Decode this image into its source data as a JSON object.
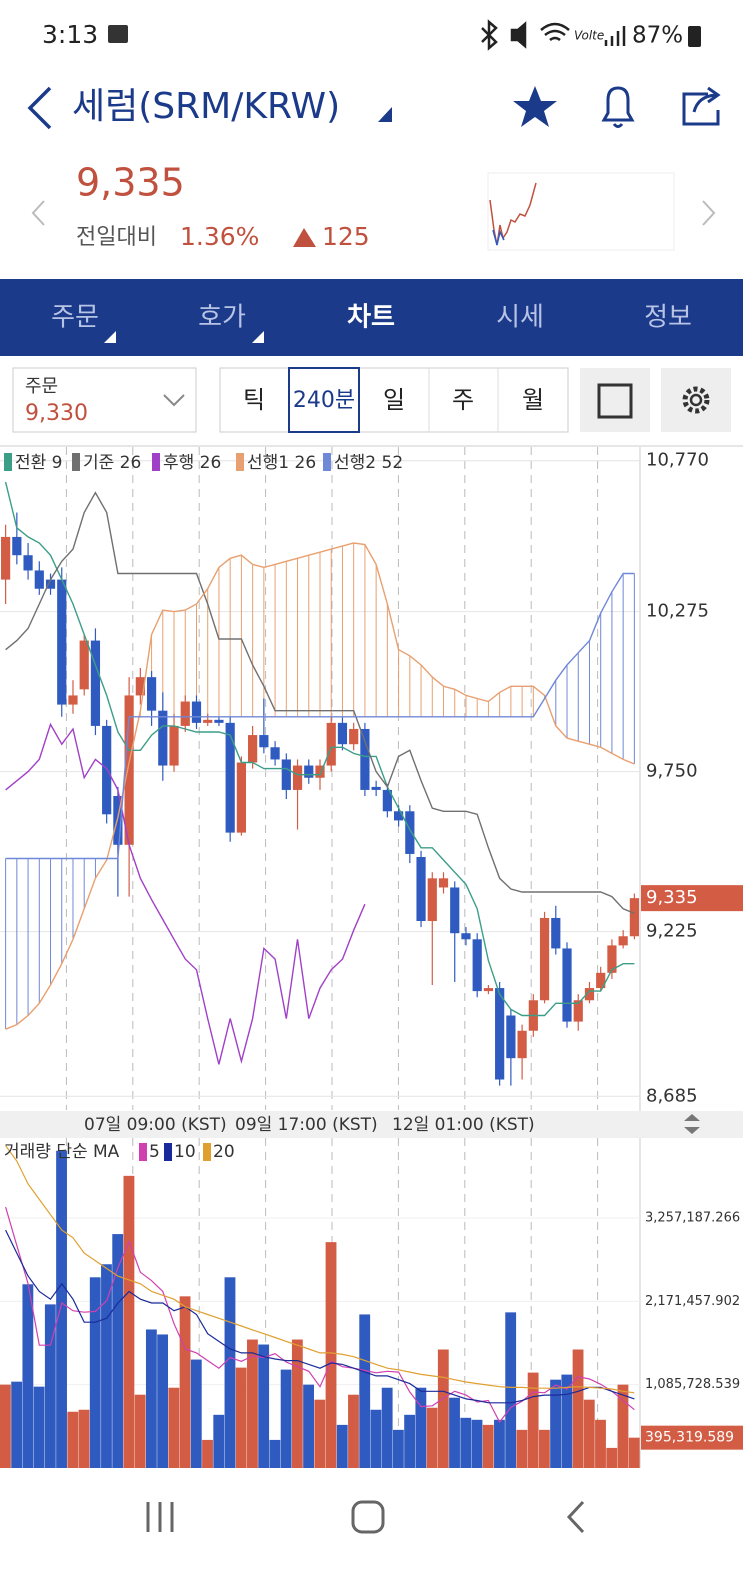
{
  "status_bar": {
    "time": "3:13",
    "battery": "87%"
  },
  "header": {
    "title": "세럼(SRM/KRW)"
  },
  "price_panel": {
    "price": "9,335",
    "change_label": "전일대비",
    "change_rate": "1.36%",
    "change_amount": "125"
  },
  "tabs": [
    "주문",
    "호가",
    "차트",
    "시세",
    "정보"
  ],
  "toolbar": {
    "order_label": "주문",
    "order_price": "9,330",
    "intervals": [
      "틱",
      "240분",
      "일",
      "주",
      "월"
    ]
  },
  "chart_data": [
    {
      "type": "candlestick",
      "up_color": "#d35c45",
      "down_color": "#2f5bc0",
      "grid": true,
      "ylim": [
        8640,
        10815
      ],
      "yticks": [
        {
          "value": 10770,
          "label": "10,770"
        },
        {
          "value": 10275,
          "label": "10,275"
        },
        {
          "value": 9750,
          "label": "9,750"
        },
        {
          "value": 9225,
          "label": "9,225"
        },
        {
          "value": 8685,
          "label": "8,685"
        }
      ],
      "last_price": {
        "value": 9335,
        "label": "9,335"
      },
      "x_labels": [
        "07일 09:00 (KST)",
        "09일 17:00 (KST)",
        "12일 01:00 (KST)"
      ],
      "open": [
        10380,
        10520,
        10460,
        10410,
        10380,
        10380,
        9970,
        10020,
        10180,
        9900,
        9670,
        9510,
        10000,
        10060,
        9950,
        9770,
        9900,
        9980,
        9910,
        9920,
        9910,
        9550,
        9780,
        9870,
        9830,
        9790,
        9690,
        9770,
        9730,
        9770,
        9910,
        9840,
        9890,
        9700,
        9690,
        9620,
        9620,
        9470,
        9260,
        9370,
        9370,
        9220,
        9200,
        9030,
        9040,
        8950,
        8810,
        8900,
        9000,
        9270,
        9170,
        8930,
        9000,
        9040,
        9090,
        9180,
        9210
      ],
      "high": [
        10560,
        10600,
        10500,
        10440,
        10400,
        10420,
        10050,
        10200,
        10220,
        9920,
        9700,
        10060,
        10090,
        10080,
        10010,
        9940,
        10000,
        10000,
        9940,
        9930,
        9930,
        9800,
        9900,
        9990,
        9850,
        9810,
        9790,
        9790,
        9790,
        9930,
        9930,
        9910,
        9910,
        9720,
        9710,
        9640,
        9640,
        9490,
        9420,
        9420,
        9390,
        9240,
        9220,
        9050,
        9060,
        8970,
        8920,
        9020,
        9290,
        9310,
        9190,
        9020,
        9060,
        9110,
        9200,
        9230,
        9350
      ],
      "low": [
        10300,
        10430,
        10380,
        10330,
        10330,
        9930,
        9940,
        10000,
        9870,
        9580,
        9340,
        9340,
        9970,
        9900,
        9720,
        9750,
        9880,
        9890,
        9900,
        9900,
        9520,
        9540,
        9760,
        9810,
        9770,
        9660,
        9560,
        9710,
        9690,
        9750,
        9820,
        9820,
        9670,
        9670,
        9600,
        9570,
        9450,
        9240,
        9050,
        9350,
        9060,
        9180,
        9010,
        9020,
        8720,
        8720,
        8740,
        8880,
        8990,
        9150,
        8910,
        8900,
        8990,
        9030,
        9070,
        9170,
        9200
      ],
      "close": [
        10520,
        10460,
        10410,
        10350,
        10350,
        9970,
        10000,
        10180,
        9900,
        9610,
        9510,
        10000,
        10060,
        9950,
        9770,
        9900,
        9980,
        9910,
        9920,
        9910,
        9550,
        9780,
        9870,
        9830,
        9790,
        9690,
        9770,
        9730,
        9770,
        9910,
        9840,
        9890,
        9690,
        9690,
        9620,
        9590,
        9480,
        9260,
        9400,
        9400,
        9220,
        9200,
        9030,
        9040,
        8740,
        8810,
        8900,
        9000,
        9270,
        9170,
        8930,
        9000,
        9040,
        9090,
        9180,
        9210,
        9335
      ],
      "series": [
        {
          "name": "전환 9",
          "color": "#3c9e87",
          "values": [
            10700,
            10550,
            10520,
            10500,
            10460,
            10380,
            10300,
            10200,
            10100,
            10000,
            9880,
            9820,
            9820,
            9870,
            9900,
            9900,
            9890,
            9880,
            9880,
            9880,
            9870,
            9780,
            9780,
            9760,
            9760,
            9760,
            9740,
            9740,
            9740,
            9830,
            9830,
            9810,
            9800,
            9800,
            9700,
            9630,
            9560,
            9500,
            9500,
            9460,
            9420,
            9380,
            9300,
            9130,
            9020,
            8970,
            8950,
            8950,
            8950,
            8990,
            8990,
            8990,
            9030,
            9030,
            9100,
            9120,
            9120
          ]
        },
        {
          "name": "기준 26",
          "color": "#707070",
          "values": [
            10150,
            10180,
            10220,
            10300,
            10380,
            10440,
            10480,
            10600,
            10665,
            10600,
            10400,
            10400,
            10400,
            10400,
            10400,
            10400,
            10400,
            10400,
            10300,
            10185,
            10185,
            10185,
            10100,
            10030,
            9950,
            9950,
            9950,
            9950,
            9950,
            9950,
            9950,
            9950,
            9850,
            9750,
            9700,
            9800,
            9820,
            9720,
            9630,
            9620,
            9620,
            9620,
            9610,
            9500,
            9400,
            9365,
            9355,
            9355,
            9355,
            9355,
            9355,
            9355,
            9355,
            9355,
            9340,
            9300,
            9285
          ]
        },
        {
          "name": "후행 26",
          "color": "#a040c8",
          "values": [
            9690,
            9720,
            9750,
            9790,
            9905,
            9840,
            9890,
            9730,
            9790,
            9760,
            9690,
            9510,
            9400,
            9330,
            9265,
            9200,
            9135,
            9100,
            8940,
            8790,
            8940,
            8800,
            8940,
            9170,
            9135,
            8940,
            9200,
            8940,
            9040,
            9100,
            9135,
            9230,
            9315,
            null,
            null,
            null,
            null,
            null,
            null,
            null,
            null,
            null,
            null,
            null,
            null,
            null,
            null,
            null,
            null,
            null,
            null,
            null,
            null,
            null,
            null,
            null,
            null
          ]
        },
        {
          "name": "선행1 26",
          "color": "#e8a070",
          "values": [
            8905,
            8920,
            8950,
            8990,
            9050,
            9120,
            9200,
            9300,
            9400,
            9460,
            9600,
            9780,
            9950,
            10200,
            10280,
            10275,
            10280,
            10300,
            10350,
            10420,
            10450,
            10460,
            10430,
            10420,
            10430,
            10440,
            10450,
            10460,
            10470,
            10480,
            10490,
            10500,
            10495,
            10430,
            10300,
            10150,
            10130,
            10100,
            10060,
            10030,
            10020,
            10000,
            9990,
            9980,
            10010,
            10030,
            10030,
            10030,
            10000,
            9900,
            9860,
            9850,
            9840,
            9830,
            9810,
            9790,
            9775
          ]
        },
        {
          "name": "선행2 52",
          "color": "#7088d8",
          "values": [
            9465,
            9465,
            9465,
            9465,
            9465,
            9465,
            9465,
            9465,
            9465,
            9465,
            9465,
            9930,
            9930,
            9930,
            9930,
            9930,
            9930,
            9930,
            9930,
            9930,
            9930,
            9930,
            9930,
            9930,
            9930,
            9930,
            9930,
            9930,
            9930,
            9930,
            9930,
            9930,
            9930,
            9930,
            9930,
            9930,
            9930,
            9930,
            9930,
            9930,
            9930,
            9930,
            9930,
            9930,
            9930,
            9930,
            9930,
            9930,
            9990,
            10050,
            10100,
            10140,
            10180,
            10270,
            10340,
            10400,
            10400
          ]
        }
      ]
    },
    {
      "type": "bar",
      "title": "거래량 단순 MA",
      "ylim": [
        0,
        4300000
      ],
      "yticks": [
        {
          "value": 3257187.266,
          "label": "3,257,187.266"
        },
        {
          "value": 2171457.902,
          "label": "2,171,457.902"
        },
        {
          "value": 1085728.539,
          "label": "1,085,728.539"
        }
      ],
      "last_value": {
        "value": 395319.589,
        "label": "395,319.589"
      },
      "values": [
        1086000,
        1125000,
        2394000,
        1060000,
        2132000,
        4134000,
        733000,
        759000,
        2485000,
        2655000,
        3048000,
        3807000,
        955000,
        1805000,
        1740000,
        1046000,
        2237000,
        1413000,
        366000,
        693000,
        2485000,
        1308000,
        1674000,
        1609000,
        366000,
        1282000,
        1674000,
        1086000,
        890000,
        2943000,
        562000,
        955000,
        2001000,
        759000,
        1046000,
        497000,
        693000,
        1046000,
        785000,
        1544000,
        916000,
        654000,
        628000,
        562000,
        628000,
        2028000,
        497000,
        1243000,
        497000,
        1151000,
        1217000,
        1544000,
        890000,
        628000,
        262000,
        1086000,
        395319.589
      ],
      "series": [
        {
          "name": "5",
          "color": "#d040b0",
          "values": [
            3400000,
            2900000,
            2400000,
            1600000,
            1600000,
            2150000,
            2050000,
            2030000,
            2040000,
            2180000,
            2610000,
            2950000,
            2550000,
            2440000,
            2300000,
            1880000,
            1550000,
            1500000,
            1400000,
            1300000,
            1440000,
            1390000,
            1460000,
            1440000,
            1490000,
            1380000,
            1320000,
            1260000,
            1060000,
            1390000,
            1320000,
            1300000,
            1270000,
            1240000,
            1260000,
            1250000,
            990000,
            800000,
            810000,
            910000,
            1000000,
            950000,
            860000,
            880000,
            600000,
            790000,
            870000,
            990000,
            980000,
            1080000,
            1030000,
            1190000,
            1160000,
            1090000,
            1000000,
            880000,
            760000
          ]
        },
        {
          "name": "10",
          "color": "#1a2a9a",
          "values": [
            3100000,
            2800000,
            2500000,
            2300000,
            2200000,
            2400000,
            2200000,
            1900000,
            1900000,
            1950000,
            2150000,
            2300000,
            2200000,
            2150000,
            2150000,
            2050000,
            2100000,
            2000000,
            1750000,
            1650000,
            1550000,
            1500000,
            1500000,
            1450000,
            1420000,
            1400000,
            1400000,
            1350000,
            1300000,
            1370000,
            1350000,
            1300000,
            1250000,
            1200000,
            1200000,
            1150000,
            1100000,
            1000000,
            1000000,
            1000000,
            950000,
            900000,
            880000,
            850000,
            850000,
            850000,
            880000,
            930000,
            950000,
            950000,
            960000,
            1000000,
            1050000,
            1050000,
            1000000,
            950000,
            900000
          ]
        },
        {
          "name": "20",
          "color": "#e0a030",
          "values": [
            4200000,
            4000000,
            3700000,
            3500000,
            3300000,
            3100000,
            3000000,
            2800000,
            2700000,
            2600000,
            2500000,
            2450000,
            2400000,
            2300000,
            2250000,
            2200000,
            2100000,
            2050000,
            2000000,
            1950000,
            1900000,
            1850000,
            1800000,
            1750000,
            1700000,
            1650000,
            1600000,
            1550000,
            1500000,
            1500000,
            1480000,
            1450000,
            1400000,
            1350000,
            1300000,
            1280000,
            1250000,
            1220000,
            1200000,
            1180000,
            1150000,
            1120000,
            1100000,
            1080000,
            1060000,
            1050000,
            1050000,
            1040000,
            1040000,
            1040000,
            1050000,
            1060000,
            1050000,
            1040000,
            1030000,
            1000000,
            980000
          ]
        }
      ]
    }
  ]
}
